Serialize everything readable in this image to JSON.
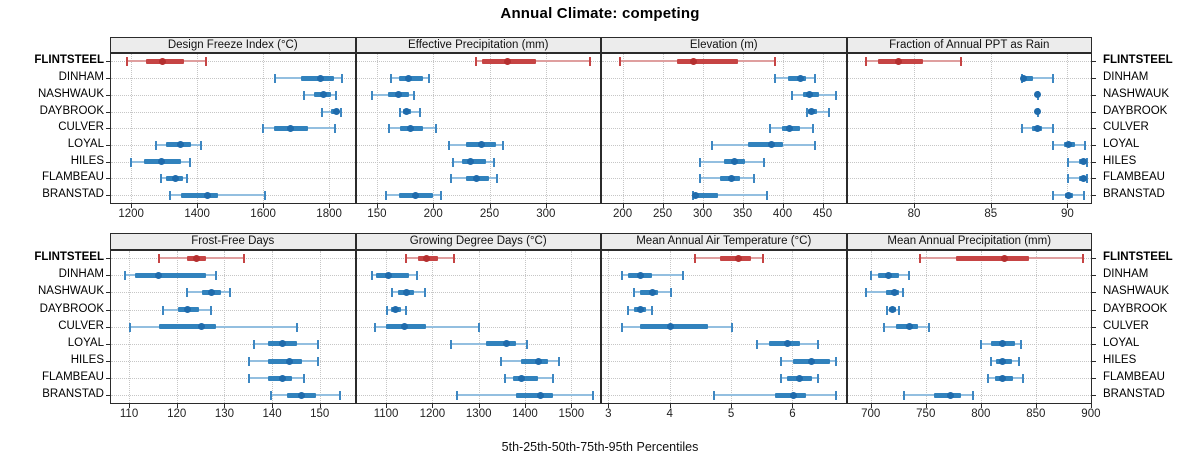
{
  "title": "Annual Climate: competing",
  "caption": "5th-25th-50th-75th-95th Percentiles",
  "sites": [
    "FLINTSTEEL",
    "DINHAM",
    "NASHWAUK",
    "DAYBROOK",
    "CULVER",
    "LOYAL",
    "HILES",
    "FLAMBEAU",
    "BRANSTAD"
  ],
  "highlight_site": "FLINTSTEEL",
  "colors": {
    "highlight_dot": "#b42f2f",
    "highlight_bar": "#c64444",
    "highlight_whisker": "#df9f9f",
    "highlight_cap": "#c64444",
    "normal_dot": "#1f6bac",
    "normal_bar": "#3182bd",
    "normal_whisker": "#93bfe0",
    "normal_cap": "#3d87c2",
    "header_bg": "#ececec",
    "panel_border": "#2b2b2b",
    "gridline": "#c6c6c6"
  },
  "chart_data": {
    "type": "dotplot",
    "title": "Annual Climate: competing",
    "xlabel": "5th-25th-50th-75th-95th Percentiles",
    "grid": "dotted",
    "legend_position": "none",
    "layout": {
      "rows": 2,
      "cols": 4
    },
    "percentiles": [
      "5th",
      "25th",
      "50th",
      "75th",
      "95th"
    ],
    "series_labels": [
      "FLINTSTEEL",
      "DINHAM",
      "NASHWAUK",
      "DAYBROOK",
      "CULVER",
      "LOYAL",
      "HILES",
      "FLAMBEAU",
      "BRANSTAD"
    ],
    "highlight_series": "FLINTSTEEL",
    "panels": [
      {
        "id": "design-freeze-index",
        "title": "Design Freeze Index (°C)",
        "row": 0,
        "col": 0,
        "xlim": [
          1136,
          1880
        ],
        "ticks": [
          1200,
          1400,
          1600,
          1800
        ],
        "values": [
          [
            1185,
            1242,
            1291,
            1358,
            1424
          ],
          [
            1634,
            1712,
            1772,
            1813,
            1836
          ],
          [
            1720,
            1752,
            1781,
            1803,
            1819
          ],
          [
            1776,
            1803,
            1820,
            1828,
            1832
          ],
          [
            1597,
            1631,
            1679,
            1732,
            1816
          ],
          [
            1272,
            1303,
            1346,
            1379,
            1410
          ],
          [
            1197,
            1237,
            1290,
            1348,
            1374
          ],
          [
            1288,
            1304,
            1330,
            1354,
            1366
          ],
          [
            1315,
            1348,
            1428,
            1460,
            1602
          ]
        ]
      },
      {
        "id": "effective-precipitation",
        "title": "Effective Precipitation (mm)",
        "row": 0,
        "col": 1,
        "xlim": [
          131,
          349
        ],
        "ticks": [
          150,
          200,
          250,
          300
        ],
        "values": [
          [
            237,
            242,
            265,
            290,
            338
          ],
          [
            162,
            169,
            177,
            190,
            195
          ],
          [
            145,
            159,
            168,
            178,
            182
          ],
          [
            170,
            172,
            175,
            179,
            187
          ],
          [
            160,
            170,
            179,
            190,
            202
          ],
          [
            213,
            228,
            242,
            255,
            261
          ],
          [
            217,
            225,
            232,
            246,
            253
          ],
          [
            215,
            228,
            238,
            249,
            256
          ],
          [
            157,
            169,
            183,
            199,
            206
          ]
        ]
      },
      {
        "id": "elevation",
        "title": "Elevation (m)",
        "row": 0,
        "col": 2,
        "xlim": [
          173,
          480
        ],
        "ticks": [
          200,
          250,
          300,
          350,
          400,
          450
        ],
        "values": [
          [
            196,
            267,
            287,
            343,
            389
          ],
          [
            389,
            406,
            421,
            428,
            439
          ],
          [
            410,
            424,
            433,
            444,
            466
          ],
          [
            429,
            431,
            435,
            442,
            457
          ],
          [
            383,
            398,
            407,
            420,
            437
          ],
          [
            310,
            356,
            385,
            399,
            439
          ],
          [
            296,
            325,
            339,
            352,
            375
          ],
          [
            295,
            320,
            335,
            345,
            363
          ],
          [
            287,
            288,
            290,
            318,
            379
          ]
        ]
      },
      {
        "id": "fraction-annual-ppt-as-rain",
        "title": "Fraction of Annual PPT as Rain",
        "row": 0,
        "col": 3,
        "xlim": [
          75.6,
          91.6
        ],
        "ticks": [
          80,
          85,
          90
        ],
        "values": [
          [
            76.8,
            77.6,
            78.9,
            80.5,
            83
          ],
          [
            87,
            87,
            87.1,
            87.7,
            89
          ],
          [
            88,
            88,
            88,
            88,
            88
          ],
          [
            88,
            88,
            88,
            88,
            88
          ],
          [
            87,
            87.6,
            88,
            88.3,
            89
          ],
          [
            89,
            89.7,
            90,
            90.4,
            91.1
          ],
          [
            90,
            90.7,
            91,
            91.1,
            91.2
          ],
          [
            90,
            90.7,
            91,
            91.1,
            91.2
          ],
          [
            89,
            89.8,
            90,
            90.3,
            91
          ]
        ]
      },
      {
        "id": "frost-free-days",
        "title": "Frost-Free Days",
        "row": 1,
        "col": 0,
        "xlim": [
          106,
          157.5
        ],
        "ticks": [
          110,
          120,
          130,
          140,
          150
        ],
        "values": [
          [
            116,
            122,
            124,
            126,
            134
          ],
          [
            109,
            111,
            116,
            126,
            128
          ],
          [
            122,
            125,
            127,
            129,
            131
          ],
          [
            117,
            120,
            122,
            124.5,
            127
          ],
          [
            110,
            116,
            125,
            128,
            145
          ],
          [
            136,
            139,
            142,
            145,
            149.5
          ],
          [
            135,
            139,
            143.5,
            146,
            149.5
          ],
          [
            135,
            139,
            142,
            144,
            146.5
          ],
          [
            139.5,
            143,
            146,
            149,
            154
          ]
        ]
      },
      {
        "id": "growing-degree-days",
        "title": "Growing Degree Days (°C)",
        "row": 1,
        "col": 1,
        "xlim": [
          1034,
          1564
        ],
        "ticks": [
          1100,
          1200,
          1300,
          1400,
          1500
        ],
        "values": [
          [
            1140,
            1166,
            1186,
            1210,
            1245
          ],
          [
            1068,
            1076,
            1103,
            1148,
            1165
          ],
          [
            1110,
            1123,
            1141,
            1159,
            1181
          ],
          [
            1099,
            1109,
            1119,
            1130,
            1140
          ],
          [
            1074,
            1098,
            1138,
            1184,
            1298
          ],
          [
            1238,
            1314,
            1358,
            1379,
            1402
          ],
          [
            1346,
            1389,
            1427,
            1447,
            1472
          ],
          [
            1355,
            1372,
            1391,
            1426,
            1459
          ],
          [
            1250,
            1379,
            1431,
            1458,
            1544
          ]
        ]
      },
      {
        "id": "mean-annual-air-temperature",
        "title": "Mean Annual Air Temperature (°C)",
        "row": 1,
        "col": 2,
        "xlim": [
          2.88,
          6.88
        ],
        "ticks": [
          3,
          4,
          5,
          6
        ],
        "values": [
          [
            4.4,
            4.8,
            5.1,
            5.3,
            5.5
          ],
          [
            3.2,
            3.3,
            3.5,
            3.7,
            4.2
          ],
          [
            3.4,
            3.5,
            3.7,
            3.8,
            4.0
          ],
          [
            3.3,
            3.4,
            3.5,
            3.6,
            3.7
          ],
          [
            3.2,
            3.5,
            4.0,
            4.6,
            5.0
          ],
          [
            5.4,
            5.6,
            5.9,
            6.1,
            6.4
          ],
          [
            5.8,
            6.0,
            6.3,
            6.6,
            6.7
          ],
          [
            5.8,
            5.9,
            6.1,
            6.3,
            6.4
          ],
          [
            4.7,
            5.7,
            6.0,
            6.2,
            6.7
          ]
        ]
      },
      {
        "id": "mean-annual-precipitation",
        "title": "Mean Annual Precipitation (mm)",
        "row": 1,
        "col": 3,
        "xlim": [
          678,
          901
        ],
        "ticks": [
          700,
          750,
          800,
          850,
          900
        ],
        "values": [
          [
            744,
            777,
            821,
            843,
            892
          ],
          [
            699,
            706,
            715,
            725,
            734
          ],
          [
            695,
            713,
            721,
            725,
            728
          ],
          [
            714,
            716,
            719,
            722,
            725
          ],
          [
            711,
            722,
            734,
            742,
            752
          ],
          [
            799,
            808,
            819,
            830,
            836
          ],
          [
            808,
            813,
            819,
            827,
            834
          ],
          [
            806,
            812,
            819,
            828,
            837
          ],
          [
            729,
            757,
            772,
            781,
            792
          ]
        ]
      }
    ]
  }
}
